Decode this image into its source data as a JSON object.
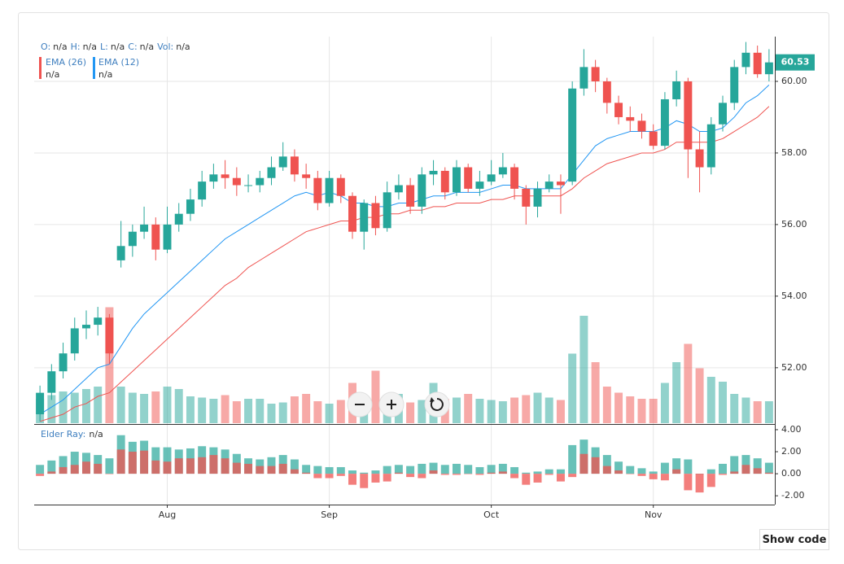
{
  "chart_data": {
    "type": "candlestick",
    "open": [
      50.7,
      51.3,
      51.9,
      52.4,
      53.1,
      53.2,
      53.4,
      55.0,
      55.4,
      55.8,
      56.0,
      55.3,
      56.0,
      56.3,
      56.7,
      57.2,
      57.4,
      57.3,
      57.1,
      57.1,
      57.3,
      57.6,
      57.9,
      57.4,
      57.3,
      56.6,
      57.3,
      56.8,
      55.8,
      56.6,
      55.9,
      56.9,
      57.1,
      56.5,
      57.4,
      57.5,
      56.9,
      57.6,
      57.0,
      57.2,
      57.4,
      57.6,
      57.0,
      56.5,
      57.0,
      57.2,
      57.2,
      59.8,
      60.4,
      60.0,
      59.4,
      59.0,
      58.9,
      58.6,
      58.2,
      59.5,
      60.0,
      58.1,
      57.6,
      58.8,
      59.4,
      60.4,
      60.8,
      60.2
    ],
    "high": [
      51.5,
      52.1,
      52.7,
      53.4,
      53.6,
      53.7,
      53.5,
      56.1,
      56.0,
      56.5,
      56.2,
      56.5,
      56.6,
      57.0,
      57.5,
      57.7,
      57.8,
      57.6,
      57.4,
      57.5,
      57.9,
      58.3,
      58.1,
      57.7,
      57.5,
      57.5,
      57.4,
      56.9,
      56.7,
      56.8,
      57.2,
      57.4,
      57.3,
      57.6,
      57.8,
      57.6,
      57.8,
      57.7,
      57.5,
      57.8,
      58.0,
      57.7,
      57.1,
      57.2,
      57.4,
      57.4,
      60.0,
      60.9,
      60.6,
      60.1,
      59.6,
      59.3,
      59.1,
      58.8,
      59.7,
      60.3,
      60.1,
      58.6,
      59.0,
      59.6,
      60.6,
      61.1,
      61.0,
      60.9
    ],
    "low": [
      50.5,
      51.1,
      51.7,
      52.2,
      52.8,
      52.9,
      52.1,
      54.8,
      55.1,
      55.6,
      55.0,
      55.2,
      55.8,
      56.1,
      56.5,
      57.0,
      57.0,
      56.8,
      56.9,
      56.9,
      57.1,
      57.5,
      57.2,
      57.0,
      56.4,
      56.5,
      56.6,
      55.6,
      55.3,
      55.7,
      55.8,
      56.7,
      56.3,
      56.3,
      57.1,
      56.7,
      56.8,
      56.9,
      56.8,
      57.1,
      57.3,
      56.7,
      56.0,
      56.2,
      56.9,
      56.3,
      57.1,
      59.6,
      59.7,
      59.1,
      58.8,
      58.6,
      58.4,
      58.1,
      58.1,
      59.3,
      57.3,
      56.9,
      57.4,
      58.6,
      59.2,
      60.2,
      60.1,
      60.0
    ],
    "close": [
      51.3,
      51.9,
      52.4,
      53.1,
      53.2,
      53.4,
      52.4,
      55.4,
      55.8,
      56.0,
      55.3,
      56.0,
      56.3,
      56.7,
      57.2,
      57.4,
      57.3,
      57.1,
      57.1,
      57.3,
      57.6,
      57.9,
      57.4,
      57.3,
      56.6,
      57.3,
      56.8,
      55.8,
      56.6,
      55.9,
      56.9,
      57.1,
      56.5,
      57.4,
      57.5,
      56.9,
      57.6,
      57.0,
      57.2,
      57.4,
      57.6,
      57.0,
      56.5,
      57.0,
      57.2,
      57.1,
      59.8,
      60.4,
      60.0,
      59.4,
      59.0,
      58.9,
      58.6,
      58.2,
      59.5,
      60.0,
      58.1,
      57.6,
      58.8,
      59.4,
      60.4,
      60.8,
      60.2,
      60.53
    ],
    "volume": [
      2,
      2.3,
      2.6,
      2.5,
      2.8,
      3,
      9.5,
      3,
      2.5,
      2.4,
      2.6,
      3,
      2.8,
      2.2,
      2.1,
      2,
      2.3,
      1.8,
      2,
      2,
      1.6,
      1.7,
      2.2,
      2.4,
      1.8,
      1.6,
      1.9,
      3.3,
      2.2,
      4.3,
      2.0,
      2.4,
      1.7,
      1.9,
      3.3,
      2,
      2.1,
      2.4,
      2,
      1.9,
      1.8,
      2.1,
      2.3,
      2.5,
      2.1,
      1.9,
      5.7,
      8.8,
      5,
      3,
      2.5,
      2.2,
      2,
      2,
      3.3,
      5,
      6.5,
      4.5,
      3.8,
      3.4,
      2.4,
      2.1,
      1.8,
      1.8
    ],
    "volume_lim": [
      0,
      10
    ],
    "up_color": "#26a69a",
    "down_color": "#ef5350",
    "grid": true,
    "ylim": [
      50.45,
      61.25
    ],
    "yticks": [
      {
        "value": 52,
        "label": "52.00"
      },
      {
        "value": 54,
        "label": "54.00"
      },
      {
        "value": 56,
        "label": "56.00"
      },
      {
        "value": 58,
        "label": "58.00"
      },
      {
        "value": 60,
        "label": "60.00"
      }
    ],
    "xticks": [
      {
        "value": 11,
        "label": "Aug"
      },
      {
        "value": 25,
        "label": "Sep"
      },
      {
        "value": 39,
        "label": "Oct"
      },
      {
        "value": 53,
        "label": "Nov"
      }
    ],
    "series": [
      {
        "name": "EMA (26)",
        "color": "#ef5350",
        "values": [
          50.5,
          50.6,
          50.7,
          50.9,
          51.0,
          51.2,
          51.3,
          51.6,
          51.9,
          52.2,
          52.5,
          52.8,
          53.1,
          53.4,
          53.7,
          54.0,
          54.3,
          54.5,
          54.8,
          55.0,
          55.2,
          55.4,
          55.6,
          55.8,
          55.9,
          56.0,
          56.1,
          56.1,
          56.2,
          56.2,
          56.3,
          56.3,
          56.4,
          56.4,
          56.5,
          56.5,
          56.6,
          56.6,
          56.6,
          56.7,
          56.7,
          56.8,
          56.8,
          56.8,
          56.8,
          56.8,
          57.0,
          57.3,
          57.5,
          57.7,
          57.8,
          57.9,
          58.0,
          58.0,
          58.1,
          58.3,
          58.3,
          58.3,
          58.3,
          58.4,
          58.6,
          58.8,
          59.0,
          59.3
        ]
      },
      {
        "name": "EMA (12)",
        "color": "#2196f3",
        "values": [
          50.7,
          50.9,
          51.1,
          51.4,
          51.7,
          52.0,
          52.1,
          52.6,
          53.1,
          53.5,
          53.8,
          54.1,
          54.4,
          54.7,
          55.0,
          55.3,
          55.6,
          55.8,
          56.0,
          56.2,
          56.4,
          56.6,
          56.8,
          56.9,
          56.8,
          56.9,
          56.8,
          56.6,
          56.6,
          56.5,
          56.5,
          56.6,
          56.6,
          56.7,
          56.8,
          56.8,
          56.9,
          56.9,
          56.9,
          57.0,
          57.1,
          57.1,
          57.0,
          57.0,
          57.0,
          57.0,
          57.4,
          57.8,
          58.2,
          58.4,
          58.5,
          58.6,
          58.6,
          58.6,
          58.7,
          58.9,
          58.8,
          58.6,
          58.6,
          58.7,
          59.0,
          59.4,
          59.6,
          59.9
        ]
      }
    ],
    "legend_fields": [
      "O:",
      "H:",
      "L:",
      "C:",
      "Vol:"
    ],
    "placeholder": "n/a",
    "indicator": {
      "type": "bar",
      "name": "Elder Ray:",
      "bull": [
        0.8,
        1.2,
        1.6,
        2.0,
        1.9,
        1.7,
        1.4,
        3.5,
        2.9,
        3.0,
        2.4,
        2.4,
        2.2,
        2.3,
        2.5,
        2.4,
        2.2,
        1.8,
        1.4,
        1.3,
        1.5,
        1.7,
        1.3,
        0.8,
        0.7,
        0.6,
        0.6,
        0.3,
        0.1,
        0.3,
        0.7,
        0.8,
        0.7,
        0.9,
        1.0,
        0.8,
        0.9,
        0.8,
        0.6,
        0.8,
        0.9,
        0.6,
        0.1,
        0.2,
        0.4,
        0.4,
        2.6,
        3.1,
        2.4,
        1.7,
        1.1,
        0.7,
        0.5,
        0.2,
        1.0,
        1.4,
        1.3,
        0.0,
        0.4,
        0.9,
        1.6,
        1.7,
        1.4,
        1.0
      ],
      "bear": [
        -0.2,
        0.2,
        0.6,
        0.8,
        1.1,
        0.9,
        0.0,
        2.2,
        2.0,
        2.1,
        1.2,
        1.1,
        1.4,
        1.4,
        1.5,
        1.7,
        1.4,
        1.0,
        0.9,
        0.7,
        0.7,
        0.9,
        0.4,
        0.1,
        -0.4,
        -0.4,
        -0.2,
        -1.0,
        -1.3,
        -0.8,
        -0.7,
        0.1,
        -0.3,
        -0.4,
        0.3,
        -0.1,
        -0.1,
        0.0,
        -0.1,
        0.1,
        0.2,
        -0.4,
        -1.0,
        -0.8,
        -0.1,
        -0.7,
        -0.3,
        1.8,
        1.5,
        0.7,
        0.3,
        0.0,
        -0.2,
        -0.5,
        -0.6,
        0.4,
        -1.5,
        -1.7,
        -1.2,
        -0.1,
        0.2,
        0.8,
        0.5,
        0.1
      ],
      "bull_color": "#4db6ac",
      "bear_color": "#ef5350",
      "ylim": [
        -2.8,
        4.44
      ],
      "yticks": [
        {
          "value": -2,
          "label": "-2.00"
        },
        {
          "value": 0,
          "label": "0.00"
        },
        {
          "value": 2,
          "label": "2.00"
        },
        {
          "value": 4,
          "label": "4.00"
        }
      ]
    }
  },
  "button": {
    "label": "Show code"
  }
}
